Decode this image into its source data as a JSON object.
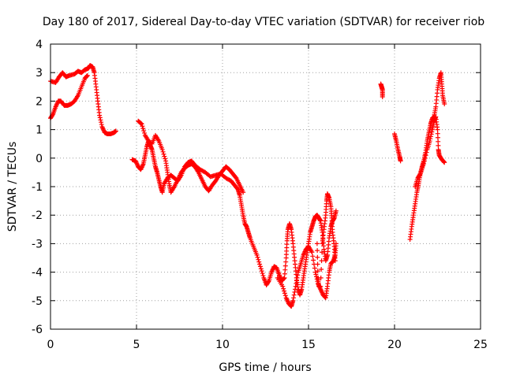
{
  "chart_data": {
    "type": "scatter",
    "title": "Day 180 of 2017, Sidereal Day-to-day VTEC variation (SDTVAR) for receiver riob",
    "xlabel": "GPS time / hours",
    "ylabel": "SDTVAR / TECUs",
    "xlim": [
      0,
      25
    ],
    "ylim": [
      -6,
      4
    ],
    "xticks": [
      0,
      5,
      10,
      15,
      20,
      25
    ],
    "yticks": [
      -6,
      -5,
      -4,
      -3,
      -2,
      -1,
      0,
      1,
      2,
      3,
      4
    ],
    "xtick_labels": [
      "0",
      "5",
      "10",
      "15",
      "20",
      "25"
    ],
    "ytick_labels": [
      "-6",
      "-5",
      "-4",
      "-3",
      "-2",
      "-1",
      "0",
      "1",
      "2",
      "3",
      "4"
    ],
    "grid": true,
    "marker": "+",
    "series": [
      {
        "name": "SDTVAR",
        "color": "#ff0000",
        "segments": [
          [
            [
              0.0,
              2.7
            ],
            [
              0.3,
              2.65
            ],
            [
              0.5,
              2.85
            ],
            [
              0.7,
              3.0
            ],
            [
              0.9,
              2.85
            ],
            [
              1.1,
              2.9
            ],
            [
              1.4,
              2.95
            ],
            [
              1.6,
              3.05
            ],
            [
              1.8,
              3.0
            ],
            [
              2.0,
              3.1
            ],
            [
              2.2,
              3.15
            ],
            [
              2.3,
              3.25
            ],
            [
              2.45,
              3.2
            ],
            [
              2.55,
              3.0
            ],
            [
              2.65,
              2.5
            ],
            [
              2.75,
              2.0
            ],
            [
              2.85,
              1.5
            ],
            [
              3.0,
              1.1
            ],
            [
              3.15,
              0.9
            ],
            [
              3.3,
              0.85
            ],
            [
              3.5,
              0.85
            ],
            [
              3.7,
              0.9
            ],
            [
              3.8,
              0.95
            ]
          ],
          [
            [
              0.0,
              1.4
            ],
            [
              0.15,
              1.55
            ],
            [
              0.3,
              1.8
            ],
            [
              0.45,
              2.0
            ],
            [
              0.6,
              2.0
            ],
            [
              0.8,
              1.85
            ],
            [
              1.0,
              1.85
            ],
            [
              1.2,
              1.9
            ],
            [
              1.4,
              2.0
            ],
            [
              1.6,
              2.2
            ],
            [
              1.8,
              2.5
            ],
            [
              2.0,
              2.8
            ],
            [
              2.15,
              2.9
            ]
          ],
          [
            [
              4.75,
              -0.05
            ],
            [
              4.95,
              -0.1
            ],
            [
              5.1,
              -0.3
            ],
            [
              5.25,
              -0.4
            ],
            [
              5.4,
              -0.2
            ],
            [
              5.5,
              0.1
            ],
            [
              5.6,
              0.4
            ],
            [
              5.7,
              0.6
            ],
            [
              5.8,
              0.45
            ],
            [
              5.9,
              0.3
            ],
            [
              6.0,
              0.0
            ],
            [
              6.1,
              -0.3
            ],
            [
              6.2,
              -0.5
            ],
            [
              6.3,
              -0.75
            ],
            [
              6.4,
              -1.0
            ],
            [
              6.5,
              -1.2
            ],
            [
              6.6,
              -0.9
            ],
            [
              6.8,
              -0.7
            ],
            [
              7.0,
              -0.6
            ],
            [
              7.2,
              -0.7
            ],
            [
              7.4,
              -0.8
            ],
            [
              7.6,
              -0.6
            ],
            [
              7.8,
              -0.3
            ],
            [
              8.0,
              -0.15
            ],
            [
              8.2,
              -0.1
            ],
            [
              8.4,
              -0.25
            ],
            [
              8.7,
              -0.4
            ],
            [
              9.0,
              -0.5
            ],
            [
              9.3,
              -0.65
            ],
            [
              9.6,
              -0.6
            ],
            [
              9.9,
              -0.55
            ],
            [
              10.2,
              -0.7
            ],
            [
              10.5,
              -0.8
            ],
            [
              10.7,
              -0.95
            ],
            [
              10.9,
              -1.1
            ],
            [
              11.0,
              -1.3
            ],
            [
              11.1,
              -1.65
            ],
            [
              11.2,
              -2.0
            ],
            [
              11.3,
              -2.3
            ],
            [
              11.4,
              -2.4
            ],
            [
              11.5,
              -2.6
            ],
            [
              11.6,
              -2.8
            ],
            [
              11.8,
              -3.1
            ],
            [
              12.0,
              -3.4
            ],
            [
              12.2,
              -3.8
            ],
            [
              12.4,
              -4.2
            ],
            [
              12.55,
              -4.45
            ],
            [
              12.7,
              -4.3
            ],
            [
              12.85,
              -4.0
            ],
            [
              13.0,
              -3.8
            ],
            [
              13.15,
              -3.85
            ],
            [
              13.3,
              -4.1
            ],
            [
              13.45,
              -4.3
            ],
            [
              13.6,
              -4.2
            ],
            [
              13.7,
              -3.5
            ],
            [
              13.75,
              -2.9
            ],
            [
              13.8,
              -2.5
            ],
            [
              13.9,
              -2.3
            ],
            [
              14.0,
              -2.5
            ],
            [
              14.1,
              -3.0
            ],
            [
              14.2,
              -3.6
            ],
            [
              14.3,
              -4.2
            ],
            [
              14.4,
              -4.6
            ],
            [
              14.5,
              -4.8
            ],
            [
              14.6,
              -4.6
            ],
            [
              14.7,
              -4.2
            ],
            [
              14.8,
              -3.8
            ],
            [
              14.9,
              -3.4
            ],
            [
              15.0,
              -3.0
            ],
            [
              15.1,
              -2.6
            ],
            [
              15.2,
              -2.4
            ],
            [
              15.3,
              -2.2
            ],
            [
              15.4,
              -2.05
            ],
            [
              15.5,
              -2.0
            ],
            [
              15.6,
              -2.1
            ],
            [
              15.7,
              -2.2
            ],
            [
              15.8,
              -2.6
            ],
            [
              15.9,
              -3.2
            ],
            [
              16.0,
              -3.6
            ],
            [
              16.1,
              -3.4
            ],
            [
              16.2,
              -2.8
            ],
            [
              16.3,
              -2.4
            ],
            [
              16.4,
              -2.2
            ],
            [
              16.5,
              -2.1
            ],
            [
              16.6,
              -1.85
            ]
          ],
          [
            [
              5.1,
              1.3
            ],
            [
              5.3,
              1.2
            ],
            [
              5.5,
              0.8
            ],
            [
              5.7,
              0.6
            ],
            [
              5.9,
              0.5
            ],
            [
              6.1,
              0.8
            ],
            [
              6.3,
              0.6
            ],
            [
              6.5,
              0.3
            ],
            [
              6.7,
              -0.1
            ],
            [
              6.8,
              -0.5
            ],
            [
              6.9,
              -0.9
            ],
            [
              7.0,
              -1.2
            ],
            [
              7.2,
              -1.0
            ],
            [
              7.4,
              -0.75
            ],
            [
              7.6,
              -0.5
            ],
            [
              7.8,
              -0.35
            ],
            [
              8.0,
              -0.25
            ],
            [
              8.2,
              -0.2
            ],
            [
              8.4,
              -0.3
            ],
            [
              8.6,
              -0.5
            ],
            [
              8.8,
              -0.75
            ],
            [
              9.0,
              -1.0
            ],
            [
              9.2,
              -1.15
            ],
            [
              9.4,
              -0.95
            ],
            [
              9.6,
              -0.8
            ],
            [
              9.8,
              -0.6
            ],
            [
              10.0,
              -0.45
            ],
            [
              10.2,
              -0.3
            ],
            [
              10.4,
              -0.4
            ],
            [
              10.6,
              -0.55
            ],
            [
              10.8,
              -0.7
            ],
            [
              11.0,
              -0.95
            ],
            [
              11.2,
              -1.2
            ]
          ],
          [
            [
              13.2,
              -4.2
            ],
            [
              13.5,
              -4.5
            ],
            [
              13.7,
              -4.9
            ],
            [
              13.85,
              -5.1
            ],
            [
              14.0,
              -5.2
            ],
            [
              14.1,
              -5.0
            ],
            [
              14.25,
              -4.5
            ],
            [
              14.4,
              -4.0
            ],
            [
              14.55,
              -3.7
            ],
            [
              14.7,
              -3.4
            ],
            [
              14.85,
              -3.2
            ],
            [
              15.0,
              -3.1
            ],
            [
              15.2,
              -3.3
            ],
            [
              15.4,
              -4.0
            ],
            [
              15.55,
              -4.4
            ],
            [
              15.7,
              -4.6
            ],
            [
              15.85,
              -4.8
            ],
            [
              16.0,
              -4.9
            ],
            [
              16.1,
              -4.5
            ],
            [
              16.2,
              -4.0
            ],
            [
              16.3,
              -3.7
            ],
            [
              16.45,
              -3.6
            ],
            [
              16.55,
              -3.4
            ],
            [
              16.6,
              -3.0
            ]
          ],
          [
            [
              15.5,
              -3.0
            ],
            [
              15.55,
              -4.2
            ],
            [
              15.6,
              -4.5
            ],
            [
              15.7,
              -4.5
            ],
            [
              15.8,
              -3.0
            ],
            [
              15.9,
              -2.5
            ],
            [
              16.0,
              -2.0
            ],
            [
              16.05,
              -1.5
            ],
            [
              16.1,
              -1.25
            ],
            [
              16.2,
              -1.4
            ],
            [
              16.3,
              -1.7
            ],
            [
              16.35,
              -2.1
            ],
            [
              16.4,
              -2.6
            ],
            [
              16.5,
              -3.1
            ],
            [
              16.55,
              -3.6
            ]
          ],
          [
            [
              19.2,
              2.6
            ],
            [
              19.25,
              2.5
            ],
            [
              19.3,
              2.4
            ],
            [
              19.3,
              2.15
            ]
          ],
          [
            [
              20.0,
              0.85
            ],
            [
              20.1,
              0.6
            ],
            [
              20.2,
              0.3
            ],
            [
              20.3,
              0.05
            ],
            [
              20.35,
              -0.1
            ]
          ],
          [
            [
              20.9,
              -2.85
            ],
            [
              21.0,
              -2.4
            ],
            [
              21.1,
              -2.0
            ],
            [
              21.2,
              -1.6
            ],
            [
              21.3,
              -1.2
            ],
            [
              21.4,
              -0.9
            ],
            [
              21.5,
              -0.55
            ],
            [
              21.6,
              -0.3
            ],
            [
              21.7,
              -0.1
            ],
            [
              21.8,
              0.2
            ],
            [
              21.9,
              0.6
            ],
            [
              22.0,
              0.9
            ],
            [
              22.1,
              1.2
            ],
            [
              22.2,
              1.4
            ],
            [
              22.3,
              1.45
            ],
            [
              22.4,
              1.8
            ],
            [
              22.5,
              2.4
            ],
            [
              22.6,
              2.8
            ],
            [
              22.7,
              3.0
            ],
            [
              22.75,
              2.6
            ],
            [
              22.8,
              2.2
            ],
            [
              22.9,
              1.9
            ]
          ],
          [
            [
              21.2,
              -1.0
            ],
            [
              21.35,
              -0.7
            ],
            [
              21.5,
              -0.55
            ],
            [
              21.7,
              -0.2
            ],
            [
              21.9,
              0.3
            ],
            [
              22.05,
              0.6
            ],
            [
              22.2,
              1.0
            ],
            [
              22.3,
              1.3
            ],
            [
              22.4,
              1.45
            ],
            [
              22.5,
              1.0
            ],
            [
              22.55,
              0.3
            ],
            [
              22.6,
              0.1
            ],
            [
              22.75,
              -0.05
            ],
            [
              22.9,
              -0.15
            ]
          ]
        ]
      }
    ]
  }
}
